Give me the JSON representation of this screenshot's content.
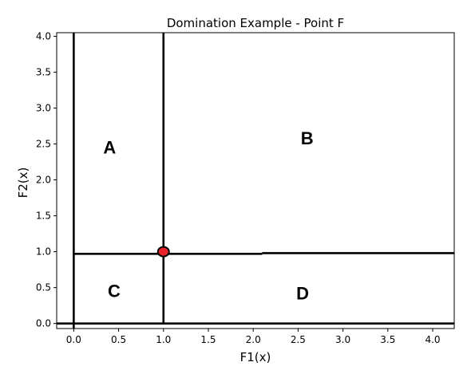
{
  "chart_data": {
    "type": "scatter",
    "title": "Domination Example - Point F",
    "xlabel": "F1(x)",
    "ylabel": "F2(x)",
    "xlim": [
      -0.19,
      4.24
    ],
    "ylim": [
      -0.07,
      4.05
    ],
    "xticks": [
      "0.0",
      "0.5",
      "1.0",
      "1.5",
      "2.0",
      "2.5",
      "3.0",
      "3.5",
      "4.0"
    ],
    "xtick_values": [
      0,
      0.5,
      1.0,
      1.5,
      2.0,
      2.5,
      3.0,
      3.5,
      4.0
    ],
    "yticks": [
      "0.0",
      "0.5",
      "1.0",
      "1.5",
      "2.0",
      "2.5",
      "3.0",
      "3.5",
      "4.0"
    ],
    "ytick_values": [
      0,
      0.5,
      1.0,
      1.5,
      2.0,
      2.5,
      3.0,
      3.5,
      4.0
    ],
    "grid": false,
    "point": {
      "x": 1.0,
      "y": 1.0,
      "color": "#e8242b"
    },
    "lines": [
      {
        "orientation": "vertical",
        "x": 0.0,
        "y_range": [
          -0.07,
          4.05
        ]
      },
      {
        "orientation": "vertical",
        "x": 1.0,
        "y_range": [
          0.0,
          4.05
        ]
      },
      {
        "orientation": "horizontal",
        "y": 0.0,
        "x_range": [
          -0.19,
          4.24
        ]
      },
      {
        "orientation": "horizontal",
        "y": 0.97,
        "x_range": [
          0.0,
          2.1
        ]
      },
      {
        "orientation": "horizontal",
        "y": 0.98,
        "x_range": [
          2.1,
          4.24
        ]
      }
    ],
    "regions": [
      {
        "label": "A",
        "x": 0.4,
        "y": 2.45
      },
      {
        "label": "B",
        "x": 2.6,
        "y": 2.58
      },
      {
        "label": "C",
        "x": 0.45,
        "y": 0.45
      },
      {
        "label": "D",
        "x": 2.55,
        "y": 0.42
      }
    ]
  }
}
